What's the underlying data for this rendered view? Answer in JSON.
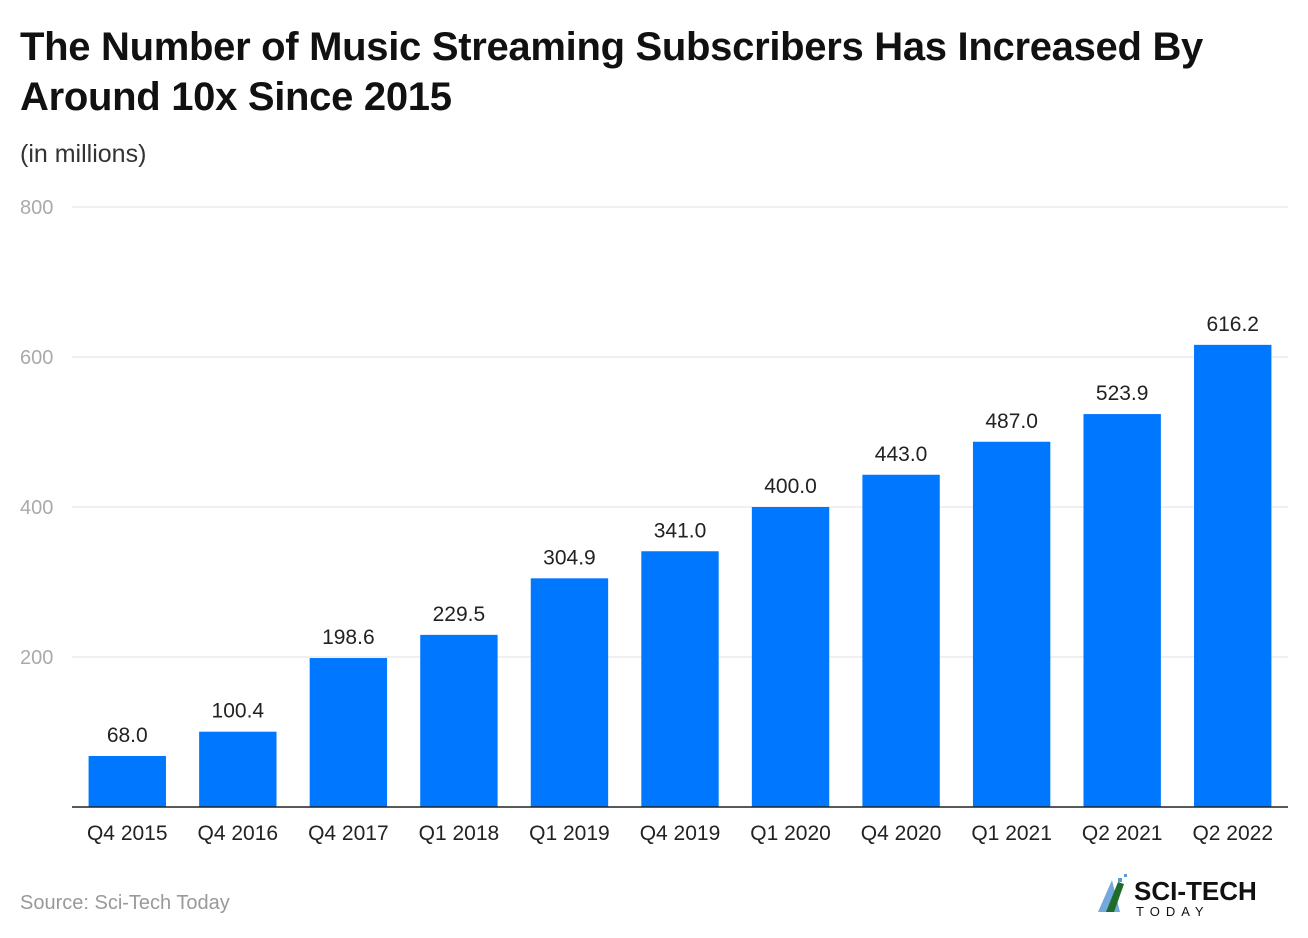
{
  "chart_data": {
    "type": "bar",
    "title": "The Number of Music Streaming Subscribers Has Increased By Around 10x Since 2015",
    "subtitle": "(in millions)",
    "categories": [
      "Q4 2015",
      "Q4 2016",
      "Q4 2017",
      "Q1 2018",
      "Q1 2019",
      "Q4 2019",
      "Q1 2020",
      "Q4 2020",
      "Q1 2021",
      "Q2 2021",
      "Q2 2022"
    ],
    "values": [
      68.0,
      100.4,
      198.6,
      229.5,
      304.9,
      341.0,
      400.0,
      443.0,
      487.0,
      523.9,
      616.2
    ],
    "value_labels": [
      "68.0",
      "100.4",
      "198.6",
      "229.5",
      "304.9",
      "341.0",
      "400.0",
      "443.0",
      "487.0",
      "523.9",
      "616.2"
    ],
    "ylim": [
      0,
      800
    ],
    "yticks": [
      200,
      400,
      600,
      800
    ],
    "grid": true,
    "bar_color": "#0077ff",
    "source": "Source: Sci-Tech Today"
  },
  "logo": {
    "text": "SCI-TECH",
    "subtext": "TODAY"
  }
}
